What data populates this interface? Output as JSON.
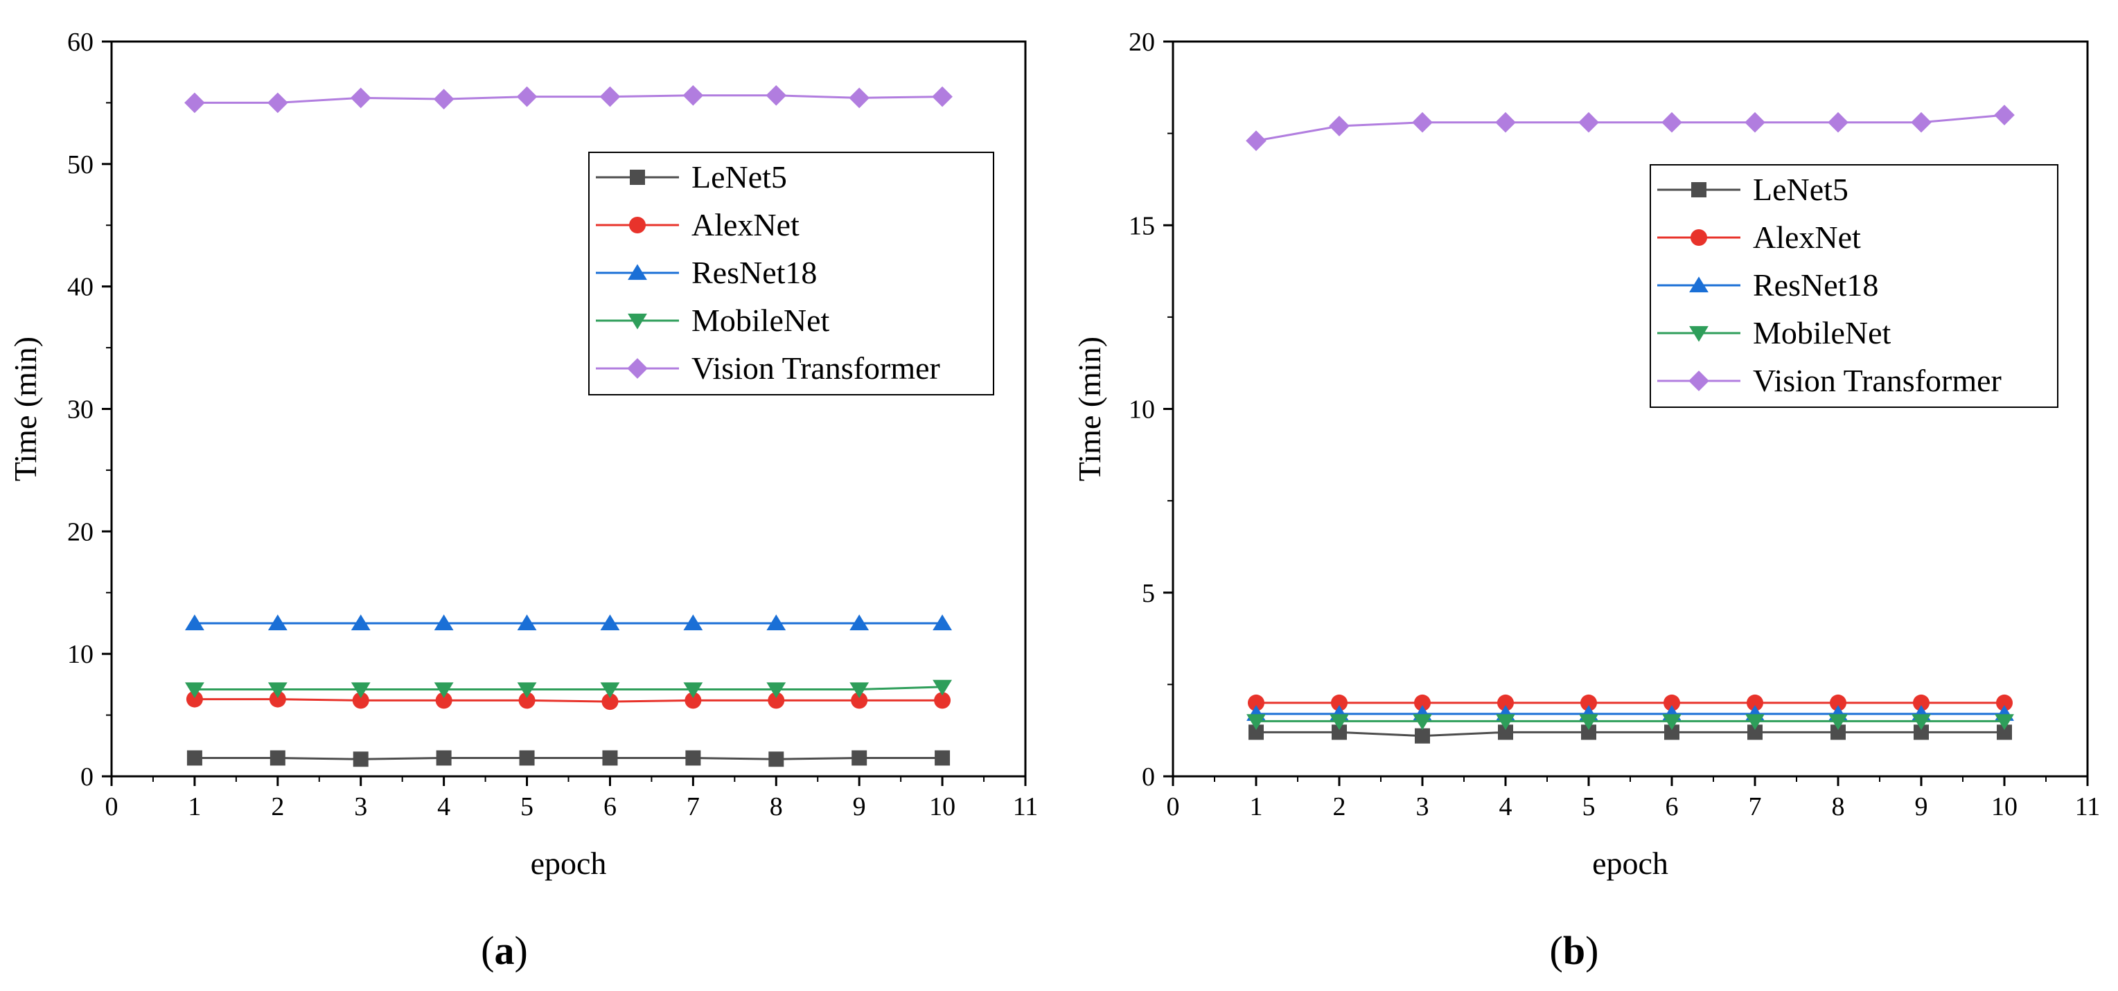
{
  "chart_data": [
    {
      "id": "a",
      "type": "line",
      "caption_letter": "a",
      "xlabel": "epoch",
      "ylabel": "Time (min)",
      "xlim": [
        0,
        11
      ],
      "ylim": [
        0,
        60
      ],
      "xticks": [
        0,
        1,
        2,
        3,
        4,
        5,
        6,
        7,
        8,
        9,
        10,
        11
      ],
      "yticks": [
        0,
        10,
        20,
        30,
        40,
        50,
        60
      ],
      "legend": "top-right",
      "x": [
        1,
        2,
        3,
        4,
        5,
        6,
        7,
        8,
        9,
        10
      ],
      "series": [
        {
          "name": "LeNet5",
          "color": "#4d4d4d",
          "marker": "square",
          "values": [
            1.5,
            1.5,
            1.4,
            1.5,
            1.5,
            1.5,
            1.5,
            1.4,
            1.5,
            1.5
          ]
        },
        {
          "name": "AlexNet",
          "color": "#e8332b",
          "marker": "circle",
          "values": [
            6.3,
            6.3,
            6.2,
            6.2,
            6.2,
            6.1,
            6.2,
            6.2,
            6.2,
            6.2
          ]
        },
        {
          "name": "ResNet18",
          "color": "#1a6fd6",
          "marker": "triangle-up",
          "values": [
            12.5,
            12.5,
            12.5,
            12.5,
            12.5,
            12.5,
            12.5,
            12.5,
            12.5,
            12.5
          ]
        },
        {
          "name": "MobileNet",
          "color": "#2e9e5a",
          "marker": "triangle-down",
          "values": [
            7.1,
            7.1,
            7.1,
            7.1,
            7.1,
            7.1,
            7.1,
            7.1,
            7.1,
            7.3
          ]
        },
        {
          "name": "Vision Transformer",
          "color": "#b17ddf",
          "marker": "diamond",
          "values": [
            55.0,
            55.0,
            55.4,
            55.3,
            55.5,
            55.5,
            55.6,
            55.6,
            55.4,
            55.5
          ]
        }
      ]
    },
    {
      "id": "b",
      "type": "line",
      "caption_letter": "b",
      "xlabel": "epoch",
      "ylabel": "Time (min)",
      "xlim": [
        0,
        11
      ],
      "ylim": [
        0,
        20
      ],
      "xticks": [
        0,
        1,
        2,
        3,
        4,
        5,
        6,
        7,
        8,
        9,
        10,
        11
      ],
      "yticks": [
        0,
        5,
        10,
        15,
        20
      ],
      "legend": "top-right",
      "x": [
        1,
        2,
        3,
        4,
        5,
        6,
        7,
        8,
        9,
        10
      ],
      "series": [
        {
          "name": "LeNet5",
          "color": "#4d4d4d",
          "marker": "square",
          "values": [
            1.2,
            1.2,
            1.1,
            1.2,
            1.2,
            1.2,
            1.2,
            1.2,
            1.2,
            1.2
          ]
        },
        {
          "name": "AlexNet",
          "color": "#e8332b",
          "marker": "circle",
          "values": [
            2.0,
            2.0,
            2.0,
            2.0,
            2.0,
            2.0,
            2.0,
            2.0,
            2.0,
            2.0
          ]
        },
        {
          "name": "ResNet18",
          "color": "#1a6fd6",
          "marker": "triangle-up",
          "values": [
            1.7,
            1.7,
            1.7,
            1.7,
            1.7,
            1.7,
            1.7,
            1.7,
            1.7,
            1.7
          ]
        },
        {
          "name": "MobileNet",
          "color": "#2e9e5a",
          "marker": "triangle-down",
          "values": [
            1.5,
            1.5,
            1.5,
            1.5,
            1.5,
            1.5,
            1.5,
            1.5,
            1.5,
            1.5
          ]
        },
        {
          "name": "Vision Transformer",
          "color": "#b17ddf",
          "marker": "diamond",
          "values": [
            17.3,
            17.7,
            17.8,
            17.8,
            17.8,
            17.8,
            17.8,
            17.8,
            17.8,
            18.0
          ]
        }
      ]
    }
  ]
}
